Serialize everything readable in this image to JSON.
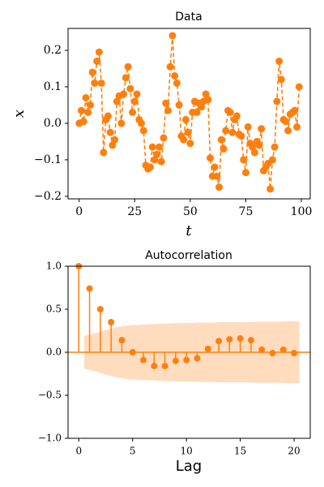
{
  "chart_data": [
    {
      "type": "line",
      "title": "Data",
      "x_label": "t",
      "y_label": "x",
      "color": "#ff7f0e",
      "line_style": "dashed",
      "x": [
        0,
        1,
        2,
        3,
        4,
        5,
        6,
        7,
        8,
        9,
        10,
        11,
        12,
        13,
        14,
        15,
        16,
        17,
        18,
        19,
        20,
        21,
        22,
        23,
        24,
        25,
        26,
        27,
        28,
        29,
        30,
        31,
        32,
        33,
        34,
        35,
        36,
        37,
        38,
        39,
        40,
        41,
        42,
        43,
        44,
        45,
        46,
        47,
        48,
        49,
        50,
        51,
        52,
        53,
        54,
        55,
        56,
        57,
        58,
        59,
        60,
        61,
        62,
        63,
        64,
        65,
        66,
        67,
        68,
        69,
        70,
        71,
        72,
        73,
        74,
        75,
        76,
        77,
        78,
        79,
        80,
        81,
        82,
        83,
        84,
        85,
        86,
        87,
        88,
        89,
        90,
        91,
        92,
        93,
        94,
        95,
        96,
        97,
        98,
        99
      ],
      "values": [
        0.0,
        0.035,
        0.005,
        0.07,
        0.03,
        0.05,
        0.14,
        0.11,
        0.17,
        0.195,
        0.11,
        -0.08,
        0.01,
        0.02,
        -0.025,
        -0.06,
        -0.045,
        0.06,
        0.075,
        0.0,
        0.08,
        0.125,
        0.155,
        0.095,
        0.03,
        0.06,
        0.08,
        0.01,
        0.0,
        -0.02,
        -0.115,
        -0.125,
        -0.12,
        -0.065,
        -0.1,
        -0.085,
        -0.065,
        -0.105,
        -0.04,
        0.055,
        0.035,
        0.155,
        0.24,
        0.13,
        0.11,
        0.05,
        -0.035,
        -0.045,
        0.01,
        -0.025,
        -0.055,
        0.03,
        0.06,
        0.03,
        0.055,
        0.045,
        0.06,
        0.08,
        0.065,
        -0.095,
        -0.145,
        -0.12,
        -0.145,
        -0.175,
        -0.045,
        -0.07,
        -0.02,
        0.035,
        0.03,
        -0.025,
        0.01,
        0.02,
        -0.03,
        -0.035,
        -0.1,
        -0.135,
        -0.01,
        -0.055,
        -0.065,
        -0.08,
        -0.05,
        -0.06,
        -0.015,
        -0.13,
        -0.12,
        -0.11,
        -0.18,
        -0.1,
        -0.065,
        0.06,
        0.17,
        0.12,
        0.01,
        0.005,
        -0.02,
        0.025,
        0.03,
        0.035,
        -0.01,
        0.1
      ],
      "xlim": [
        -5,
        104
      ],
      "xticks": [
        0,
        25,
        50,
        75,
        100
      ],
      "ylim": [
        -0.207,
        0.26
      ],
      "yticks": [
        {
          "value": -0.2,
          "label": "−0.2"
        },
        {
          "value": -0.1,
          "label": "−0.1"
        },
        {
          "value": 0,
          "label": "0.0"
        },
        0.1,
        0.2
      ]
    },
    {
      "type": "stem",
      "title": "Autocorrelation",
      "x_label": "Lag",
      "color": "#ff7f0e",
      "band_color": "#ffdcbd",
      "x": [
        0,
        1,
        2,
        3,
        4,
        5,
        6,
        7,
        8,
        9,
        10,
        11,
        12,
        13,
        14,
        15,
        16,
        17,
        18,
        19,
        20
      ],
      "values": [
        1.0,
        0.74,
        0.5,
        0.35,
        0.14,
        0.0,
        -0.09,
        -0.16,
        -0.16,
        -0.1,
        -0.09,
        -0.07,
        0.04,
        0.13,
        0.15,
        0.16,
        0.14,
        0.03,
        -0.01,
        0.03,
        -0.01
      ],
      "confidence_band": {
        "x": [
          0.5,
          1.5,
          2.5,
          3.5,
          4.5,
          5.5,
          6.5,
          7.5,
          8.5,
          9.5,
          10.5,
          11.5,
          12.5,
          13.5,
          14.5,
          15.5,
          16.5,
          17.5,
          18.5,
          19.5,
          20.5
        ],
        "upper": [
          0.19,
          0.22,
          0.26,
          0.29,
          0.31,
          0.32,
          0.325,
          0.33,
          0.335,
          0.34,
          0.34,
          0.345,
          0.345,
          0.35,
          0.35,
          0.35,
          0.355,
          0.355,
          0.355,
          0.36,
          0.36
        ],
        "lower": [
          -0.19,
          -0.22,
          -0.26,
          -0.29,
          -0.31,
          -0.32,
          -0.325,
          -0.33,
          -0.335,
          -0.34,
          -0.34,
          -0.345,
          -0.345,
          -0.35,
          -0.35,
          -0.35,
          -0.355,
          -0.355,
          -0.355,
          -0.36,
          -0.36
        ]
      },
      "xlim": [
        -1,
        21.5
      ],
      "xticks": [
        0,
        5,
        10,
        15,
        20
      ],
      "ylim": [
        -1,
        1
      ],
      "yticks": [
        {
          "value": -1,
          "label": "−1.0"
        },
        {
          "value": -0.5,
          "label": "−0.5"
        },
        {
          "value": 0,
          "label": "0.0"
        },
        {
          "value": 0.5,
          "label": "0.5"
        },
        {
          "value": 1,
          "label": "1.0"
        }
      ]
    }
  ]
}
